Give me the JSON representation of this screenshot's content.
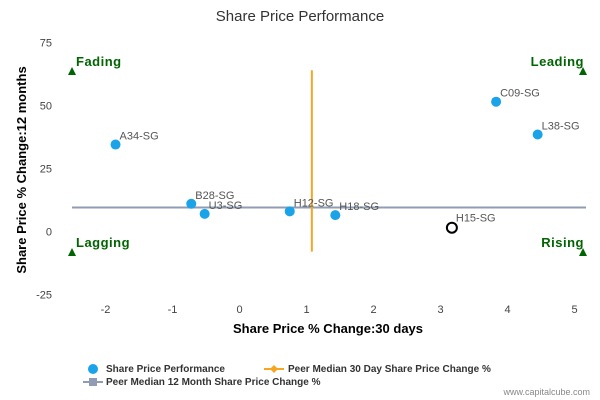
{
  "chart_data": {
    "type": "scatter",
    "title": "Share Price Performance",
    "xlabel": "Share Price % Change:30 days",
    "ylabel": "Share Price % Change:12 months",
    "xlim": [
      -2.5,
      5.2
    ],
    "ylim": [
      -25,
      75
    ],
    "x_ticks": [
      -2,
      -1,
      0,
      1,
      2,
      3,
      4,
      5
    ],
    "y_ticks": [
      -25,
      0,
      25,
      50,
      75
    ],
    "grid": false,
    "colors": {
      "points": "#1aa3e8",
      "peer_median_30d": "#f5a623",
      "peer_median_12m": "#8f9cb3",
      "quadrant": "#006400"
    },
    "series": [
      {
        "name": "Share Price Performance",
        "points": [
          {
            "label": "A34-SG",
            "x": -1.85,
            "y": 34.5
          },
          {
            "label": "B28-SG",
            "x": -0.72,
            "y": 11.0
          },
          {
            "label": "U3-SG",
            "x": -0.52,
            "y": 7.0
          },
          {
            "label": "H12-SG",
            "x": 0.75,
            "y": 8.0
          },
          {
            "label": "H18-SG",
            "x": 1.43,
            "y": 6.5
          },
          {
            "label": "C09-SG",
            "x": 3.83,
            "y": 51.5
          },
          {
            "label": "L38-SG",
            "x": 4.45,
            "y": 38.5
          }
        ]
      },
      {
        "name": "Peer Median 30 Day Share Price Change %",
        "x": 1.08,
        "y_range": [
          -8,
          64
        ]
      },
      {
        "name": "Peer Median 12 Month Share Price Change %",
        "y": 9.5
      }
    ],
    "highlight": {
      "label": "H15-SG",
      "x": 3.17,
      "y": 1.5
    },
    "quadrants": [
      {
        "label": "Fading",
        "position": "top-left"
      },
      {
        "label": "Leading",
        "position": "top-right"
      },
      {
        "label": "Lagging",
        "position": "bottom-left"
      },
      {
        "label": "Rising",
        "position": "bottom-right"
      }
    ],
    "legend_position": "bottom-left"
  },
  "credit": "www.capitalcube.com"
}
